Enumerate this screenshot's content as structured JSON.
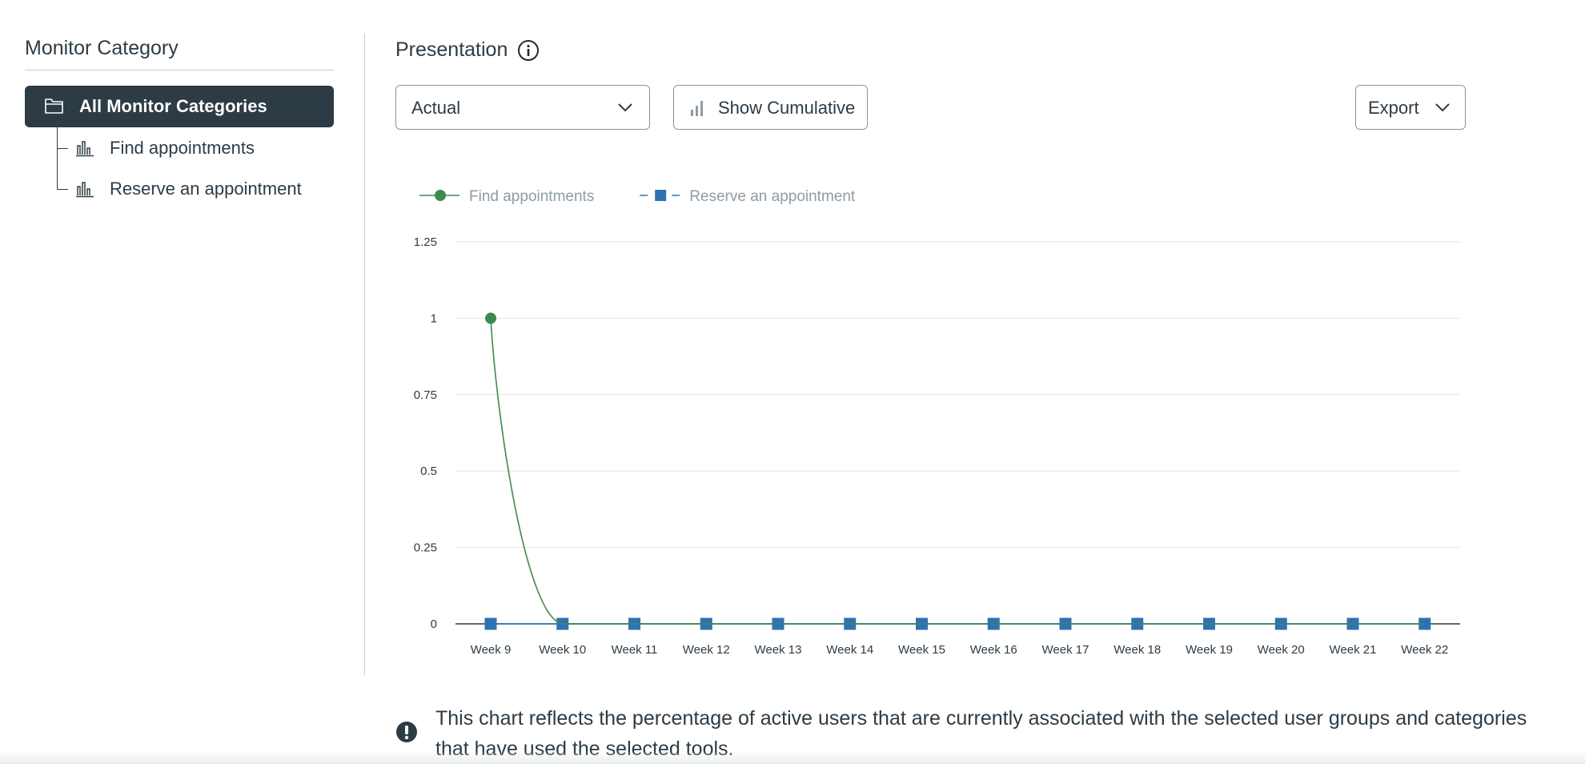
{
  "sidebar": {
    "title": "Monitor Category",
    "root": {
      "label": "All Monitor Categories",
      "icon": "folder-icon"
    },
    "items": [
      {
        "label": "Find appointments",
        "icon": "bar-chart-icon"
      },
      {
        "label": "Reserve an appointment",
        "icon": "bar-chart-icon"
      }
    ]
  },
  "main": {
    "title": "Presentation",
    "info_icon": "info-icon",
    "mode_select": {
      "value": "Actual"
    },
    "cumulative_button": {
      "label": "Show Cumulative",
      "icon": "bar-chart-icon"
    },
    "export_button": {
      "label": "Export"
    },
    "note": "This chart reflects the percentage of active users that are currently associated with the selected user groups and categories that have used the selected tools."
  },
  "colors": {
    "find": "#3d8a4f",
    "reserve": "#2f72b4",
    "sidebar_active": "#2d3b45"
  },
  "chart_data": {
    "type": "line",
    "categories": [
      "Week 9",
      "Week 10",
      "Week 11",
      "Week 12",
      "Week 13",
      "Week 14",
      "Week 15",
      "Week 16",
      "Week 17",
      "Week 18",
      "Week 19",
      "Week 20",
      "Week 21",
      "Week 22"
    ],
    "series": [
      {
        "name": "Find appointments",
        "values": [
          1,
          0,
          0,
          0,
          0,
          0,
          0,
          0,
          0,
          0,
          0,
          0,
          0,
          0
        ],
        "color": "#3d8a4f",
        "marker": "circle",
        "dash": false
      },
      {
        "name": "Reserve an appointment",
        "values": [
          0,
          0,
          0,
          0,
          0,
          0,
          0,
          0,
          0,
          0,
          0,
          0,
          0,
          0
        ],
        "color": "#2f72b4",
        "marker": "square",
        "dash": true
      }
    ],
    "yticks": [
      "0",
      "0.25",
      "0.5",
      "0.75",
      "1",
      "1.25"
    ],
    "ylim": [
      0,
      1.25
    ],
    "grid": true,
    "legend": "top-left",
    "title": "",
    "xlabel": "",
    "ylabel": ""
  }
}
